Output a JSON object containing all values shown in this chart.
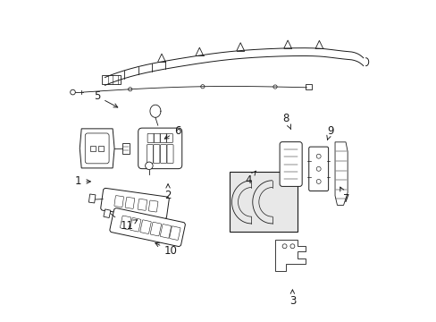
{
  "bg_color": "#ffffff",
  "line_color": "#1a1a1a",
  "figsize": [
    4.89,
    3.6
  ],
  "dpi": 100,
  "labels": {
    "1": [
      0.055,
      0.435,
      0.105,
      0.435
    ],
    "2": [
      0.34,
      0.39,
      0.34,
      0.43
    ],
    "3": [
      0.735,
      0.055,
      0.735,
      0.095
    ],
    "4": [
      0.595,
      0.44,
      0.62,
      0.47
    ],
    "5": [
      0.115,
      0.705,
      0.19,
      0.665
    ],
    "6": [
      0.37,
      0.595,
      0.32,
      0.565
    ],
    "7": [
      0.905,
      0.38,
      0.885,
      0.42
    ],
    "8": [
      0.715,
      0.635,
      0.73,
      0.6
    ],
    "9": [
      0.855,
      0.595,
      0.845,
      0.565
    ],
    "10": [
      0.35,
      0.215,
      0.29,
      0.245
    ],
    "11": [
      0.21,
      0.295,
      0.245,
      0.315
    ]
  }
}
